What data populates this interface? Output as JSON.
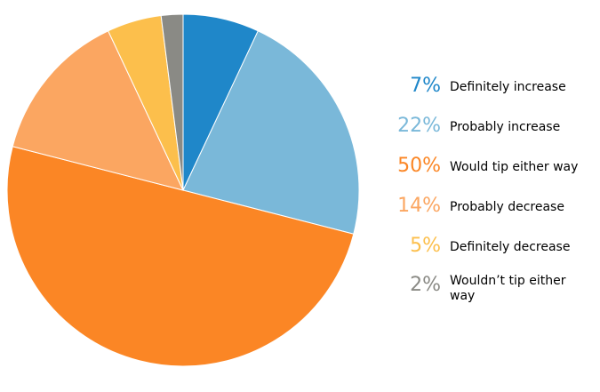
{
  "chart_data": {
    "type": "pie",
    "title": "",
    "slices": [
      {
        "label": "Definitely increase",
        "value": 7,
        "pct_label": "7%",
        "color": "#1f87c9"
      },
      {
        "label": "Probably increase",
        "value": 22,
        "pct_label": "22%",
        "color": "#7ab8d9"
      },
      {
        "label": "Would tip either way",
        "value": 50,
        "pct_label": "50%",
        "color": "#fb8625"
      },
      {
        "label": "Probably decrease",
        "value": 14,
        "pct_label": "14%",
        "color": "#fba661"
      },
      {
        "label": "Definitely decrease",
        "value": 5,
        "pct_label": "5%",
        "color": "#fcbf4c"
      },
      {
        "label": "Wouldn’t tip either way",
        "value": 2,
        "pct_label": "2%",
        "color": "#8a8a85"
      }
    ],
    "start": "12 o'clock",
    "direction": "clockwise",
    "legend_position": "right"
  }
}
